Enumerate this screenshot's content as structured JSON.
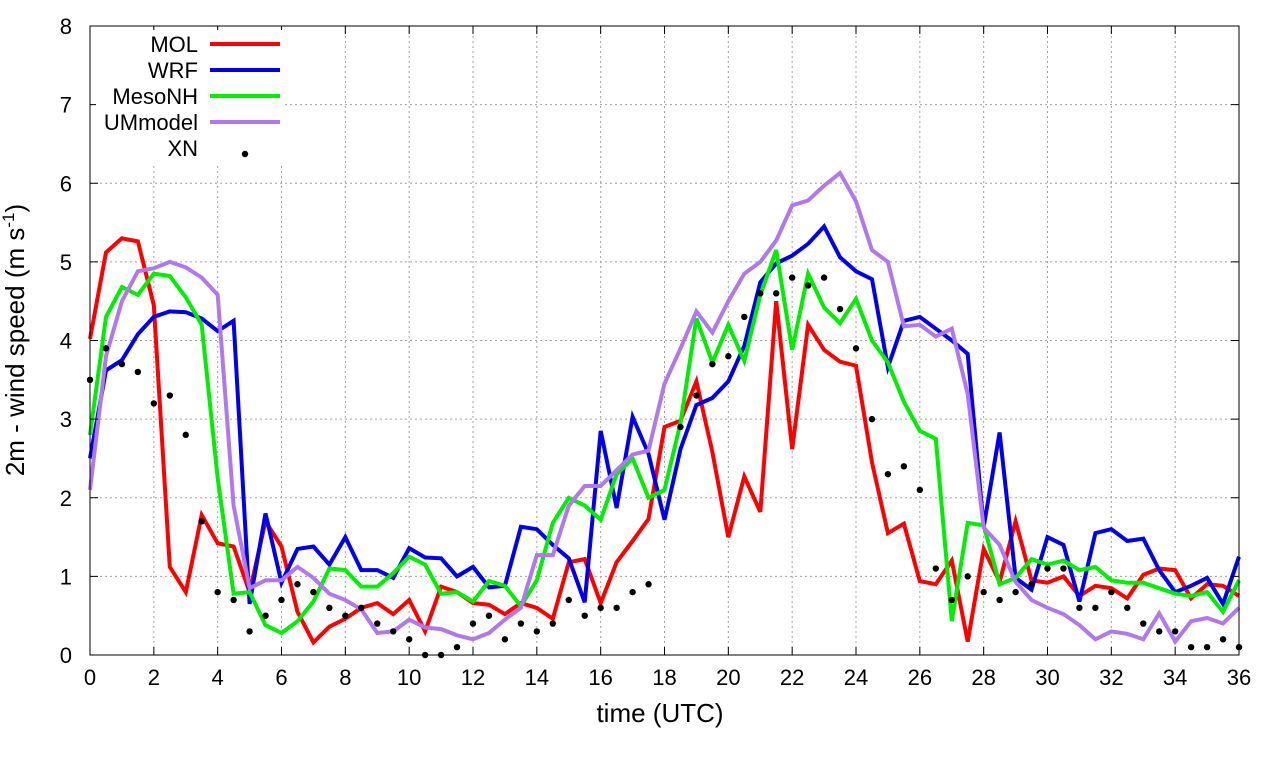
{
  "chart_data": {
    "type": "line",
    "title": "",
    "xlabel": "time (UTC)",
    "ylabel_main": "2m - wind speed  (m s",
    "ylabel_sup": "-1",
    "ylabel_tail": ")",
    "xlim": [
      0,
      36
    ],
    "ylim": [
      0,
      8
    ],
    "grid": true,
    "legend_position": "top-left",
    "x_ticks": [
      0,
      2,
      4,
      6,
      8,
      10,
      12,
      14,
      16,
      18,
      20,
      22,
      24,
      26,
      28,
      30,
      32,
      34,
      36
    ],
    "y_ticks": [
      0,
      1,
      2,
      3,
      4,
      5,
      6,
      7,
      8
    ],
    "x_tick_labels": [
      "0",
      "2",
      "4",
      "6",
      "8",
      "10",
      "12",
      "14",
      "16",
      "18",
      "20",
      "22",
      "24",
      "26",
      "28",
      "30",
      "32",
      "34",
      "36"
    ],
    "y_tick_labels": [
      "0",
      "1",
      "2",
      "3",
      "4",
      "5",
      "6",
      "7",
      "8"
    ],
    "series": [
      {
        "name": "MOL",
        "color": "#ff0000",
        "style": "line",
        "x": [
          0,
          0.5,
          1,
          1.5,
          2,
          2.5,
          3,
          3.5,
          4,
          4.5,
          5,
          5.5,
          6,
          6.5,
          7,
          7.5,
          8,
          8.5,
          9,
          9.5,
          10,
          10.5,
          11,
          11.5,
          12,
          12.5,
          13,
          13.5,
          14,
          14.5,
          15,
          15.5,
          16,
          16.5,
          17,
          17.5,
          18,
          18.5,
          19,
          19.5,
          20,
          20.5,
          21,
          21.5,
          22,
          22.5,
          23,
          23.5,
          24,
          24.5,
          25,
          25.5,
          26,
          26.5,
          27,
          27.5,
          28,
          28.5,
          29,
          29.5,
          30,
          30.5,
          31,
          31.5,
          32,
          32.5,
          33,
          33.5,
          34,
          34.5,
          35,
          35.5,
          36
        ],
        "y": [
          4.02,
          5.12,
          5.3,
          5.26,
          4.45,
          1.12,
          0.8,
          1.78,
          1.42,
          1.38,
          0.8,
          1.7,
          1.38,
          0.55,
          0.16,
          0.36,
          0.46,
          0.6,
          0.66,
          0.52,
          0.7,
          0.3,
          0.87,
          0.8,
          0.66,
          0.64,
          0.52,
          0.66,
          0.6,
          0.46,
          1.18,
          1.22,
          0.66,
          1.18,
          1.45,
          1.73,
          2.9,
          2.98,
          3.48,
          2.58,
          1.5,
          2.27,
          1.82,
          4.5,
          2.62,
          4.2,
          3.88,
          3.73,
          3.68,
          2.45,
          1.55,
          1.67,
          0.94,
          0.9,
          1.2,
          0.17,
          1.35,
          0.93,
          1.7,
          0.95,
          0.92,
          1.0,
          0.75,
          0.88,
          0.85,
          0.72,
          1.02,
          1.1,
          1.08,
          0.72,
          0.9,
          0.88,
          0.75
        ]
      },
      {
        "name": "WRF",
        "color": "#0000ee",
        "style": "line",
        "x": [
          0,
          0.5,
          1,
          1.5,
          2,
          2.5,
          3,
          3.5,
          4,
          4.5,
          5,
          5.5,
          6,
          6.5,
          7,
          7.5,
          8,
          8.5,
          9,
          9.5,
          10,
          10.5,
          11,
          11.5,
          12,
          12.5,
          13,
          13.5,
          14,
          14.5,
          15,
          15.5,
          16,
          16.5,
          17,
          17.5,
          18,
          18.5,
          19,
          19.5,
          20,
          20.5,
          21,
          21.5,
          22,
          22.5,
          23,
          23.5,
          24,
          24.5,
          25,
          25.5,
          26,
          26.5,
          27,
          27.5,
          28,
          28.5,
          29,
          29.5,
          30,
          30.5,
          31,
          31.5,
          32,
          32.5,
          33,
          33.5,
          34,
          34.5,
          35,
          35.5,
          36
        ],
        "y": [
          2.5,
          3.62,
          3.75,
          4.08,
          4.3,
          4.37,
          4.36,
          4.28,
          4.12,
          4.25,
          0.65,
          1.8,
          0.92,
          1.35,
          1.38,
          1.15,
          1.5,
          1.08,
          1.08,
          0.98,
          1.36,
          1.24,
          1.23,
          1.0,
          1.12,
          0.86,
          0.88,
          1.63,
          1.6,
          1.4,
          1.23,
          0.67,
          2.85,
          1.87,
          3.03,
          2.56,
          1.72,
          2.62,
          3.18,
          3.27,
          3.48,
          3.93,
          4.74,
          4.98,
          5.08,
          5.23,
          5.45,
          5.06,
          4.88,
          4.78,
          3.66,
          4.25,
          4.3,
          4.15,
          4.0,
          3.83,
          1.63,
          2.83,
          0.98,
          0.83,
          1.5,
          1.4,
          0.68,
          1.55,
          1.6,
          1.45,
          1.48,
          1.08,
          0.8,
          0.88,
          0.98,
          0.65,
          1.25
        ]
      },
      {
        "name": "MesoNH",
        "color": "#00ee00",
        "style": "line",
        "x": [
          0,
          0.5,
          1,
          1.5,
          2,
          2.5,
          3,
          3.5,
          4,
          4.5,
          5,
          5.5,
          6,
          6.5,
          7,
          7.5,
          8,
          8.5,
          9,
          9.5,
          10,
          10.5,
          11,
          11.5,
          12,
          12.5,
          13,
          13.5,
          14,
          14.5,
          15,
          15.5,
          16,
          16.5,
          17,
          17.5,
          18,
          18.5,
          19,
          19.5,
          20,
          20.5,
          21,
          21.5,
          22,
          22.5,
          23,
          23.5,
          24,
          24.5,
          25,
          25.5,
          26,
          26.5,
          27,
          27.5,
          28,
          28.5,
          29,
          29.5,
          30,
          30.5,
          31,
          31.5,
          32,
          32.5,
          33,
          33.5,
          34,
          34.5,
          35,
          35.5,
          36
        ],
        "y": [
          2.8,
          4.3,
          4.68,
          4.58,
          4.85,
          4.82,
          4.55,
          4.2,
          2.25,
          0.78,
          0.8,
          0.38,
          0.28,
          0.43,
          0.68,
          1.1,
          1.08,
          0.87,
          0.87,
          1.04,
          1.25,
          1.15,
          0.78,
          0.8,
          0.68,
          0.94,
          0.88,
          0.62,
          0.95,
          1.68,
          2.0,
          1.9,
          1.72,
          2.3,
          2.5,
          2.0,
          2.1,
          2.95,
          4.28,
          3.72,
          4.2,
          3.74,
          4.58,
          5.15,
          3.88,
          4.85,
          4.42,
          4.22,
          4.53,
          4.0,
          3.72,
          3.22,
          2.85,
          2.75,
          0.43,
          1.68,
          1.65,
          0.9,
          0.98,
          1.22,
          1.15,
          1.2,
          1.08,
          1.12,
          0.95,
          0.92,
          0.92,
          0.85,
          0.78,
          0.75,
          0.8,
          0.55,
          0.95
        ]
      },
      {
        "name": "UMmodel",
        "color": "#b078ee",
        "style": "line",
        "x": [
          0,
          0.5,
          1,
          1.5,
          2,
          2.5,
          3,
          3.5,
          4,
          4.5,
          5,
          5.5,
          6,
          6.5,
          7,
          7.5,
          8,
          8.5,
          9,
          9.5,
          10,
          10.5,
          11,
          11.5,
          12,
          12.5,
          13,
          13.5,
          14,
          14.5,
          15,
          15.5,
          16,
          16.5,
          17,
          17.5,
          18,
          18.5,
          19,
          19.5,
          20,
          20.5,
          21,
          21.5,
          22,
          22.5,
          23,
          23.5,
          24,
          24.5,
          25,
          25.5,
          26,
          26.5,
          27,
          27.5,
          28,
          28.5,
          29,
          29.5,
          30,
          30.5,
          31,
          31.5,
          32,
          32.5,
          33,
          33.5,
          34,
          34.5,
          35,
          35.5,
          36
        ],
        "y": [
          2.1,
          3.8,
          4.5,
          4.88,
          4.92,
          5.0,
          4.93,
          4.8,
          4.58,
          1.9,
          0.85,
          0.95,
          0.95,
          1.12,
          0.98,
          0.78,
          0.7,
          0.58,
          0.28,
          0.3,
          0.45,
          0.35,
          0.33,
          0.25,
          0.2,
          0.28,
          0.45,
          0.6,
          1.27,
          1.27,
          1.9,
          2.15,
          2.15,
          2.35,
          2.55,
          2.6,
          3.45,
          3.9,
          4.37,
          4.1,
          4.5,
          4.85,
          5.0,
          5.27,
          5.72,
          5.78,
          5.97,
          6.13,
          5.77,
          5.15,
          5.0,
          4.18,
          4.2,
          4.05,
          4.15,
          3.32,
          1.62,
          1.4,
          0.93,
          0.7,
          0.6,
          0.52,
          0.38,
          0.2,
          0.3,
          0.27,
          0.2,
          0.53,
          0.17,
          0.43,
          0.47,
          0.4,
          0.6
        ]
      },
      {
        "name": "XN",
        "color": "#000000",
        "style": "points",
        "x": [
          0,
          0.5,
          1,
          1.5,
          2,
          2.5,
          3,
          3.5,
          4,
          4.5,
          5,
          5.5,
          6,
          6.5,
          7,
          7.5,
          8,
          8.5,
          9,
          9.5,
          10,
          10.5,
          11,
          11.5,
          12,
          12.5,
          13,
          13.5,
          14,
          14.5,
          15,
          15.5,
          16,
          16.5,
          17,
          17.5,
          18.5,
          19,
          19.5,
          20,
          20.5,
          21,
          21.5,
          22,
          22.5,
          23,
          23.5,
          24,
          24.5,
          25,
          25.5,
          26,
          26.5,
          27,
          27.5,
          28,
          28.5,
          29,
          29.5,
          30,
          30.5,
          31,
          31.5,
          32,
          32.5,
          33,
          33.5,
          34,
          34.5,
          35,
          35.5,
          36
        ],
        "y": [
          3.5,
          3.9,
          3.7,
          3.6,
          3.2,
          3.3,
          2.8,
          1.7,
          0.8,
          0.7,
          0.3,
          0.5,
          0.7,
          0.9,
          0.8,
          0.6,
          0.5,
          0.6,
          0.4,
          0.3,
          0.2,
          0.0,
          0.0,
          0.1,
          0.4,
          0.5,
          0.2,
          0.4,
          0.3,
          0.4,
          0.7,
          0.5,
          0.6,
          0.6,
          0.8,
          0.9,
          2.9,
          3.3,
          3.7,
          3.8,
          4.3,
          4.6,
          4.6,
          4.8,
          4.7,
          4.8,
          4.4,
          3.9,
          3.0,
          2.3,
          2.4,
          2.1,
          1.1,
          0.7,
          1.0,
          0.8,
          0.7,
          0.8,
          0.9,
          1.1,
          1.1,
          0.6,
          0.6,
          0.8,
          0.6,
          0.4,
          0.3,
          0.3,
          0.1,
          0.1,
          0.2,
          0.1
        ]
      }
    ]
  }
}
